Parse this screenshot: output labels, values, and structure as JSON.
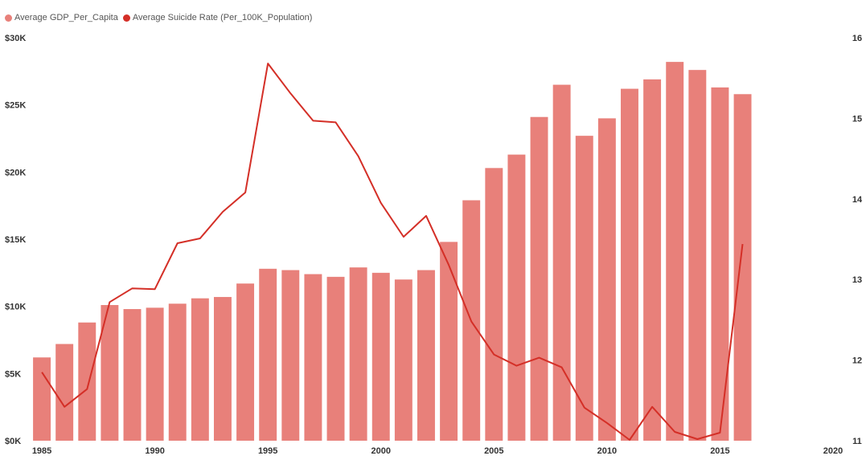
{
  "legend": {
    "items": [
      {
        "label": "Average GDP_Per_Capita",
        "color": "#E8807A"
      },
      {
        "label": "Average Suicide Rate (Per_100K_Population)",
        "color": "#D42F27"
      }
    ]
  },
  "chart_data": {
    "type": "bar",
    "x": [
      1985,
      1986,
      1987,
      1988,
      1989,
      1990,
      1991,
      1992,
      1993,
      1994,
      1995,
      1996,
      1997,
      1998,
      1999,
      2000,
      2001,
      2002,
      2003,
      2004,
      2005,
      2006,
      2007,
      2008,
      2009,
      2010,
      2011,
      2012,
      2013,
      2014,
      2015,
      2016
    ],
    "xticks": [
      "1985",
      "1990",
      "1995",
      "2000",
      "2005",
      "2010",
      "2015",
      "2020"
    ],
    "xlim": [
      1984.5,
      2020
    ],
    "series": [
      {
        "name": "Average GDP_Per_Capita",
        "type": "bar",
        "axis": "left",
        "color": "#E8807A",
        "values": [
          6200,
          7200,
          8800,
          10100,
          9800,
          9900,
          10200,
          10600,
          10700,
          11700,
          12800,
          12700,
          12400,
          12200,
          12900,
          12500,
          12000,
          12700,
          14800,
          17900,
          20300,
          21300,
          24100,
          26500,
          22700,
          24000,
          26200,
          26900,
          28200,
          27600,
          26300,
          25800
        ]
      },
      {
        "name": "Average Suicide Rate (Per_100K_Population)",
        "type": "line",
        "axis": "right",
        "color": "#D42F27",
        "values": [
          11.85,
          11.42,
          11.64,
          12.72,
          12.89,
          12.88,
          13.45,
          13.51,
          13.84,
          14.08,
          15.68,
          15.31,
          14.97,
          14.95,
          14.53,
          13.95,
          13.53,
          13.79,
          13.18,
          12.48,
          12.07,
          11.93,
          12.03,
          11.91,
          11.41,
          11.22,
          11.01,
          11.42,
          11.11,
          11.02,
          11.1,
          13.44
        ]
      }
    ],
    "y_left": {
      "min": 0,
      "max": 30000,
      "ticks": [
        "$0K",
        "$5K",
        "$10K",
        "$15K",
        "$20K",
        "$25K",
        "$30K"
      ]
    },
    "y_right": {
      "min": 11,
      "max": 16,
      "ticks": [
        "11",
        "12",
        "13",
        "14",
        "15",
        "16"
      ]
    },
    "grid": false,
    "legend_position": "top-left"
  }
}
